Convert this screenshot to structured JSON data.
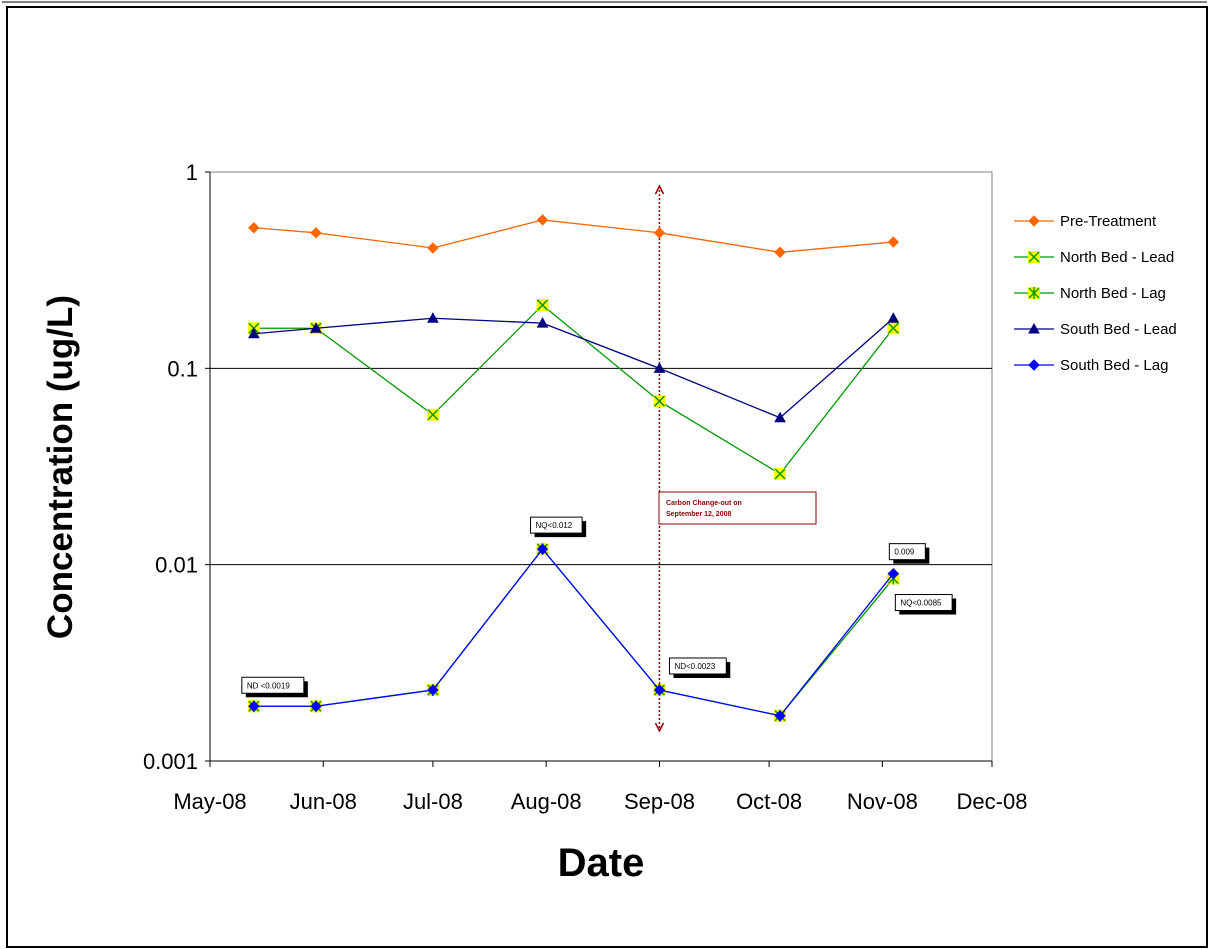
{
  "chart_data": {
    "type": "line",
    "title": "",
    "xlabel": "Date",
    "ylabel": "Concentration (ug/L)",
    "yscale": "log",
    "ylim": [
      0.001,
      1
    ],
    "xlim": [
      "2008-05-01",
      "2008-12-01"
    ],
    "ytick_labels": [
      "1",
      "0.1",
      "0.01",
      "0.001"
    ],
    "ytick_values": [
      1,
      0.1,
      0.01,
      0.001
    ],
    "xtick_labels": [
      "May-08",
      "Jun-08",
      "Jul-08",
      "Aug-08",
      "Sep-08",
      "Oct-08",
      "Nov-08",
      "Dec-08"
    ],
    "xtick_dates": [
      "2008-05-01",
      "2008-06-01",
      "2008-07-01",
      "2008-08-01",
      "2008-09-01",
      "2008-10-01",
      "2008-11-01",
      "2008-12-01"
    ],
    "grid": "horizontal major lines",
    "legend_position": "right",
    "series": [
      {
        "name": "Pre-Treatment",
        "color": "#FF6600",
        "marker": "diamond",
        "x": [
          "2008-05-13",
          "2008-05-30",
          "2008-07-01",
          "2008-07-31",
          "2008-09-01",
          "2008-10-04",
          "2008-11-04"
        ],
        "values": [
          0.52,
          0.49,
          0.41,
          0.57,
          0.49,
          0.39,
          0.44
        ]
      },
      {
        "name": "North Bed - Lead",
        "color": "#009900",
        "marker": "x-yellow-box",
        "x": [
          "2008-05-13",
          "2008-05-30",
          "2008-07-01",
          "2008-07-31",
          "2008-09-01",
          "2008-10-04",
          "2008-11-04"
        ],
        "values": [
          0.16,
          0.16,
          0.058,
          0.21,
          0.068,
          0.029,
          0.16
        ]
      },
      {
        "name": "North Bed - Lag",
        "color": "#009900",
        "marker": "star-yellow-box",
        "x": [
          "2008-05-13",
          "2008-05-30",
          "2008-07-01",
          "2008-07-31",
          "2008-09-01",
          "2008-10-04",
          "2008-11-04"
        ],
        "values": [
          0.0019,
          0.0019,
          0.0023,
          0.012,
          0.0023,
          0.0017,
          0.0085
        ]
      },
      {
        "name": "South Bed - Lead",
        "color": "#000080",
        "marker": "triangle",
        "x": [
          "2008-05-13",
          "2008-05-30",
          "2008-07-01",
          "2008-07-31",
          "2008-09-01",
          "2008-10-04",
          "2008-11-04"
        ],
        "values": [
          0.15,
          0.16,
          0.18,
          0.17,
          0.1,
          0.056,
          0.18
        ]
      },
      {
        "name": "South Bed - Lag",
        "color": "#0000FF",
        "marker": "diamond",
        "x": [
          "2008-05-13",
          "2008-05-30",
          "2008-07-01",
          "2008-07-31",
          "2008-09-01",
          "2008-10-04",
          "2008-11-04"
        ],
        "values": [
          0.0019,
          0.0019,
          0.0023,
          0.012,
          0.0023,
          0.0017,
          0.009
        ]
      }
    ],
    "vertical_marker": {
      "x": "2008-09-01",
      "color": "#8B0000"
    },
    "annotations": [
      {
        "text": "ND <0.0019",
        "x": "2008-05-13",
        "y": 0.0019
      },
      {
        "text": "NQ<0.012",
        "x": "2008-07-31",
        "y": 0.012
      },
      {
        "text": "ND<0.0023",
        "x": "2008-09-01",
        "y": 0.0023
      },
      {
        "text": "0.009",
        "x": "2008-11-04",
        "y": 0.009
      },
      {
        "text": "NQ<0.0085",
        "x": "2008-11-04",
        "y": 0.0085
      }
    ],
    "callout": {
      "lines": [
        "Carbon Change-out on",
        "September 12, 2008"
      ],
      "color": "#8B0000"
    }
  }
}
